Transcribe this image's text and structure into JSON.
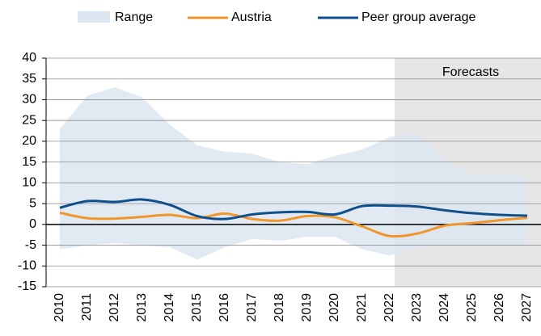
{
  "chart_data": {
    "type": "line",
    "categories": [
      "2010",
      "2011",
      "2012",
      "2013",
      "2014",
      "2015",
      "2016",
      "2017",
      "2018",
      "2019",
      "2020",
      "2021",
      "2022",
      "2023",
      "2024",
      "2025",
      "2026",
      "2027"
    ],
    "range": {
      "name": "Range",
      "color": "#dce6f1",
      "upper": [
        23,
        31,
        33,
        30.5,
        24,
        19,
        17.5,
        17,
        15,
        14.5,
        16.5,
        18,
        21,
        22,
        15.5,
        12,
        12,
        11.5
      ],
      "lower": [
        -6,
        -5,
        -4.5,
        -5,
        -5.5,
        -8.5,
        -5.5,
        -3.5,
        -4,
        -3,
        -3,
        -6,
        -7.5,
        -5.5,
        -5,
        -5,
        -5,
        -5
      ]
    },
    "series": [
      {
        "name": "Austria",
        "color": "#f0962c",
        "values": [
          2.8,
          1.5,
          1.4,
          1.8,
          2.3,
          1.5,
          2.6,
          1.3,
          0.9,
          2,
          1.7,
          -0.5,
          -2.8,
          -2.2,
          -0.3,
          0.3,
          1,
          1.6
        ]
      },
      {
        "name": "Peer group average",
        "color": "#0f4f8c",
        "values": [
          4,
          5.6,
          5.4,
          6,
          4.7,
          2,
          1.3,
          2.4,
          2.9,
          3,
          2.4,
          4.4,
          4.5,
          4.3,
          3.4,
          2.7,
          2.3,
          2.1
        ]
      }
    ],
    "forecast": {
      "from": "2022",
      "label": "Forecasts"
    },
    "ylim": [
      -15,
      40
    ],
    "yticks": [
      -15,
      -10,
      -5,
      0,
      5,
      10,
      15,
      20,
      25,
      30,
      35,
      40
    ],
    "grid": true
  }
}
